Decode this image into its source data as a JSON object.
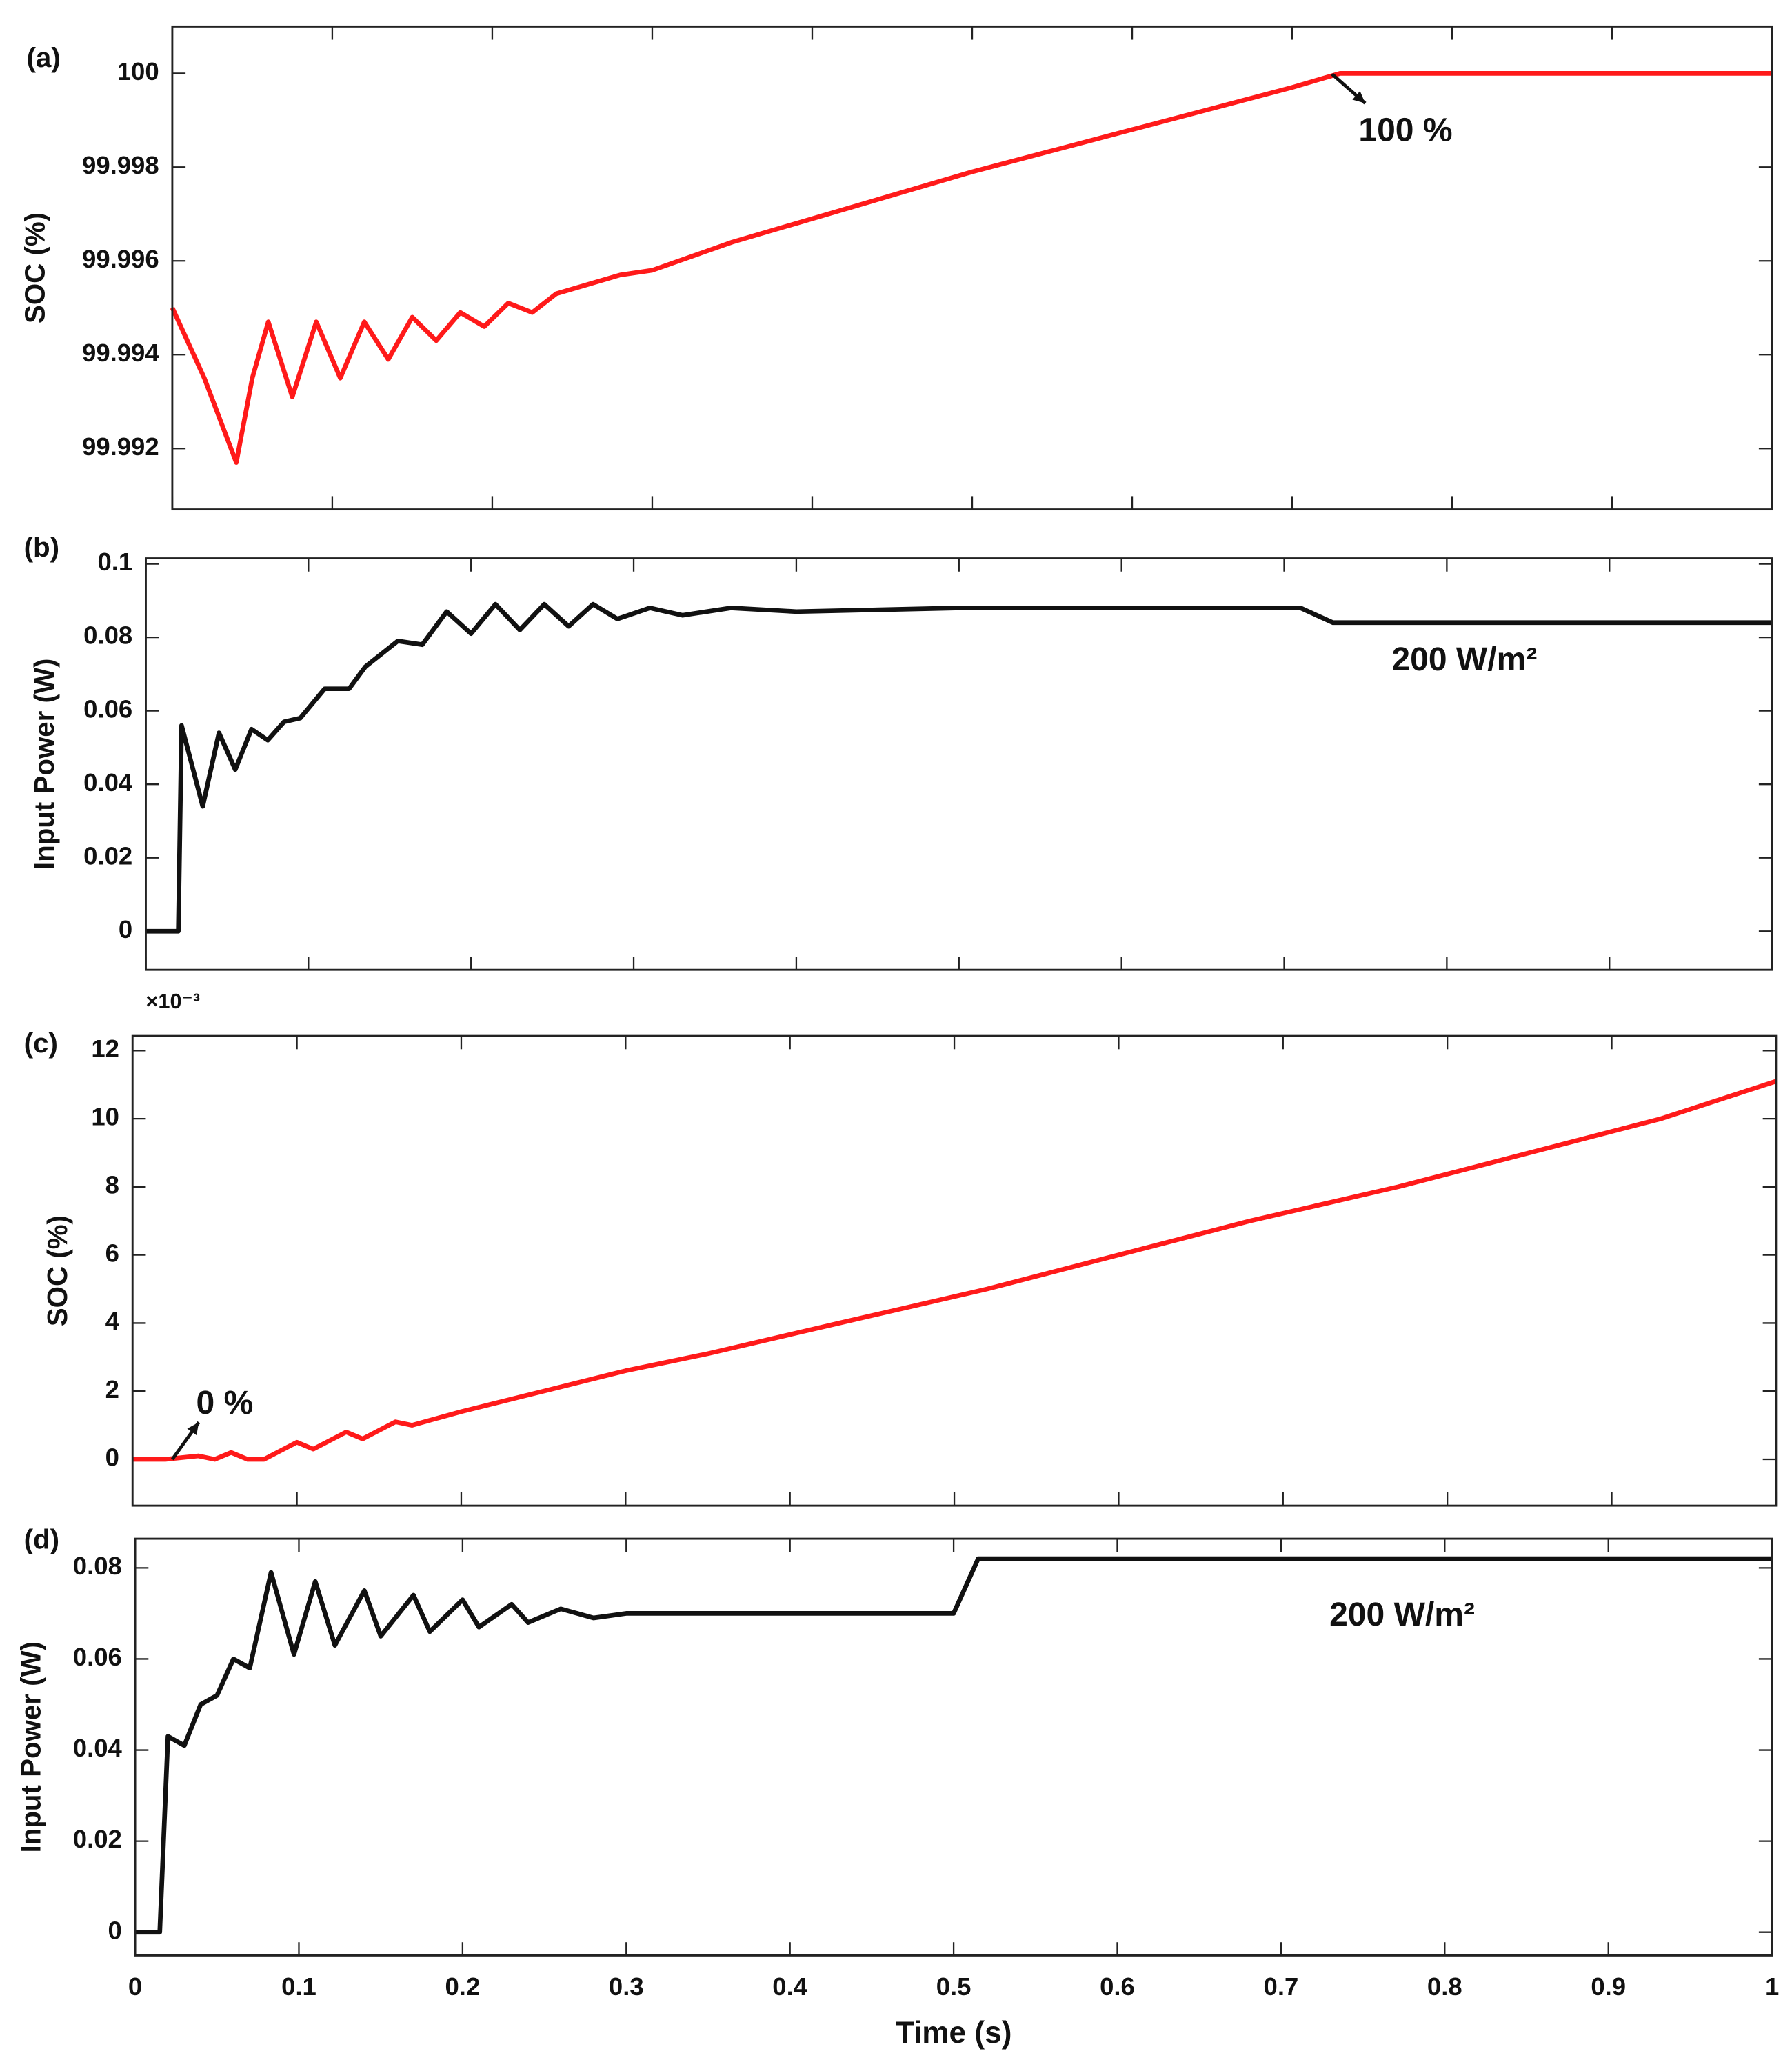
{
  "chart_data": [
    {
      "type": "line",
      "panel_label": "(a)",
      "ylabel": "SOC (%)",
      "color": "#ff1a1a",
      "x": [
        0,
        0.02,
        0.04,
        0.05,
        0.06,
        0.075,
        0.09,
        0.105,
        0.12,
        0.135,
        0.15,
        0.165,
        0.18,
        0.195,
        0.21,
        0.225,
        0.24,
        0.26,
        0.28,
        0.3,
        0.35,
        0.4,
        0.5,
        0.6,
        0.7,
        0.73,
        0.8,
        0.9,
        1
      ],
      "values": [
        99.995,
        99.9935,
        99.9917,
        99.9935,
        99.9947,
        99.9931,
        99.9947,
        99.9935,
        99.9947,
        99.9939,
        99.9948,
        99.9943,
        99.9949,
        99.9946,
        99.9951,
        99.9949,
        99.9953,
        99.9955,
        99.9957,
        99.9958,
        99.9964,
        99.9969,
        99.9979,
        99.9988,
        99.9997,
        100,
        100,
        100,
        100
      ],
      "xlim": [
        0,
        1
      ],
      "xticks": [
        0,
        0.1,
        0.2,
        0.3,
        0.4,
        0.5,
        0.6,
        0.7,
        0.8,
        0.9,
        1
      ],
      "show_xtick_labels": false,
      "ylim": [
        99.9907,
        100.001
      ],
      "yticks": [
        99.992,
        99.994,
        99.996,
        99.998,
        100
      ],
      "annotation": "100 %"
    },
    {
      "type": "line",
      "panel_label": "(b)",
      "ylabel": "Input Power (W)",
      "color": "#111111",
      "x": [
        0,
        0.02,
        0.022,
        0.035,
        0.045,
        0.055,
        0.065,
        0.075,
        0.085,
        0.095,
        0.11,
        0.125,
        0.135,
        0.155,
        0.17,
        0.185,
        0.2,
        0.215,
        0.23,
        0.245,
        0.26,
        0.275,
        0.29,
        0.31,
        0.33,
        0.36,
        0.4,
        0.5,
        0.6,
        0.7,
        0.71,
        0.73,
        0.8,
        0.9,
        1
      ],
      "values": [
        0,
        0,
        0.056,
        0.034,
        0.054,
        0.044,
        0.055,
        0.052,
        0.057,
        0.058,
        0.066,
        0.066,
        0.072,
        0.079,
        0.078,
        0.087,
        0.081,
        0.089,
        0.082,
        0.089,
        0.083,
        0.089,
        0.085,
        0.088,
        0.086,
        0.088,
        0.087,
        0.088,
        0.088,
        0.088,
        0.088,
        0.084,
        0.084,
        0.084,
        0.084
      ],
      "xlim": [
        0,
        1
      ],
      "xticks": [
        0,
        0.1,
        0.2,
        0.3,
        0.4,
        0.5,
        0.6,
        0.7,
        0.8,
        0.9,
        1
      ],
      "show_xtick_labels": false,
      "ylim": [
        -0.0105,
        0.1015
      ],
      "yticks": [
        0,
        0.02,
        0.04,
        0.06,
        0.08,
        0.1
      ],
      "annotation": "200 W/m²"
    },
    {
      "type": "line",
      "panel_label": "(c)",
      "ylabel": "SOC (%)",
      "y_exponent_label": "×10⁻³",
      "color": "#ff1a1a",
      "x": [
        0,
        0.02,
        0.04,
        0.05,
        0.06,
        0.07,
        0.08,
        0.1,
        0.11,
        0.13,
        0.14,
        0.16,
        0.17,
        0.2,
        0.25,
        0.3,
        0.35,
        0.43,
        0.52,
        0.6,
        0.68,
        0.77,
        0.85,
        0.93,
        1
      ],
      "values": [
        0,
        0,
        0.1,
        0,
        0.2,
        0,
        0,
        0.5,
        0.3,
        0.8,
        0.6,
        1.1,
        1,
        1.4,
        2,
        2.6,
        3.1,
        4,
        5,
        6,
        7,
        8,
        9,
        10,
        11.1
      ],
      "xlim": [
        0,
        1
      ],
      "xticks": [
        0,
        0.1,
        0.2,
        0.3,
        0.4,
        0.5,
        0.6,
        0.7,
        0.8,
        0.9,
        1
      ],
      "show_xtick_labels": false,
      "ylim": [
        -1.36,
        12.43
      ],
      "yticks": [
        0,
        2,
        4,
        6,
        8,
        10,
        12
      ],
      "annotation": "0 %"
    },
    {
      "type": "line",
      "panel_label": "(d)",
      "ylabel": "Input Power (W)",
      "xlabel": "Time (s)",
      "color": "#111111",
      "x": [
        0,
        0.015,
        0.02,
        0.03,
        0.04,
        0.05,
        0.06,
        0.07,
        0.083,
        0.097,
        0.11,
        0.122,
        0.14,
        0.15,
        0.17,
        0.18,
        0.2,
        0.21,
        0.23,
        0.24,
        0.26,
        0.28,
        0.3,
        0.4,
        0.5,
        0.515,
        0.6,
        0.7,
        0.8,
        0.9,
        1
      ],
      "values": [
        0,
        0,
        0.043,
        0.041,
        0.05,
        0.052,
        0.06,
        0.058,
        0.079,
        0.061,
        0.077,
        0.063,
        0.075,
        0.065,
        0.074,
        0.066,
        0.073,
        0.067,
        0.072,
        0.068,
        0.071,
        0.069,
        0.07,
        0.07,
        0.07,
        0.082,
        0.082,
        0.082,
        0.082,
        0.082,
        0.082
      ],
      "xlim": [
        0,
        1
      ],
      "xticks": [
        0,
        0.1,
        0.2,
        0.3,
        0.4,
        0.5,
        0.6,
        0.7,
        0.8,
        0.9,
        1
      ],
      "show_xtick_labels": true,
      "ylim": [
        -0.0051,
        0.0864
      ],
      "yticks": [
        0,
        0.02,
        0.04,
        0.06,
        0.08
      ],
      "annotation": "200 W/m²"
    }
  ]
}
